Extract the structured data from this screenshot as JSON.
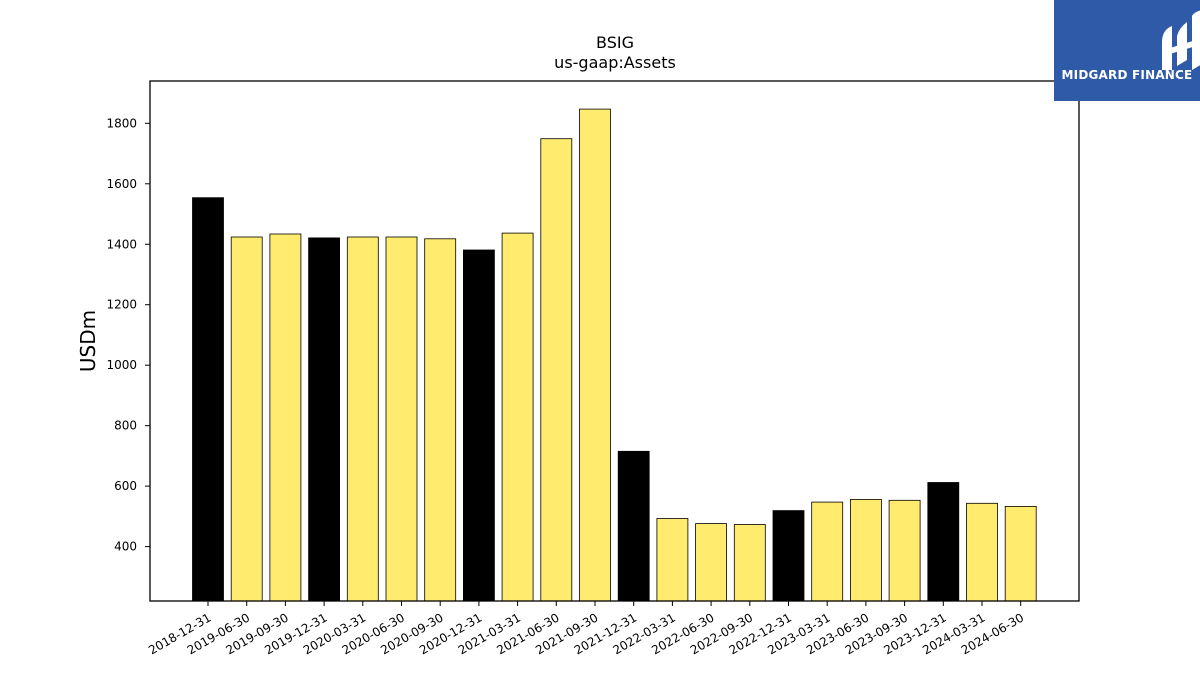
{
  "logo": {
    "text": "MIDGARD FINANCE",
    "background": "#2f5aa8",
    "icon": "midgard-logo-mark-icon"
  },
  "chart_data": {
    "type": "bar",
    "title": "BSIG",
    "subtitle": "us-gaap:Assets",
    "xlabel": "",
    "ylabel": "USDm",
    "ylim": [
      220,
      1940
    ],
    "yticks": [
      400,
      600,
      800,
      1000,
      1200,
      1400,
      1600,
      1800
    ],
    "grid": false,
    "legend": "none",
    "colors": {
      "annual": "#000000",
      "quarterly": "#ffec6e",
      "edge": "#000000"
    },
    "categories": [
      "2018-12-31",
      "2019-06-30",
      "2019-09-30",
      "2019-12-31",
      "2020-03-31",
      "2020-06-30",
      "2020-09-30",
      "2020-12-31",
      "2021-03-31",
      "2021-06-30",
      "2021-09-30",
      "2021-12-31",
      "2022-03-31",
      "2022-06-30",
      "2022-09-30",
      "2022-12-31",
      "2023-03-31",
      "2023-06-30",
      "2023-09-30",
      "2023-12-31",
      "2024-03-31",
      "2024-06-30"
    ],
    "values": [
      1554,
      1424,
      1434,
      1421,
      1424,
      1424,
      1418,
      1381,
      1437,
      1749,
      1847,
      715,
      493,
      476,
      473,
      519,
      547,
      556,
      553,
      612,
      543,
      533
    ],
    "annual_flags": [
      true,
      false,
      false,
      true,
      false,
      false,
      false,
      true,
      false,
      false,
      false,
      true,
      false,
      false,
      false,
      true,
      false,
      false,
      false,
      true,
      false,
      false
    ]
  }
}
